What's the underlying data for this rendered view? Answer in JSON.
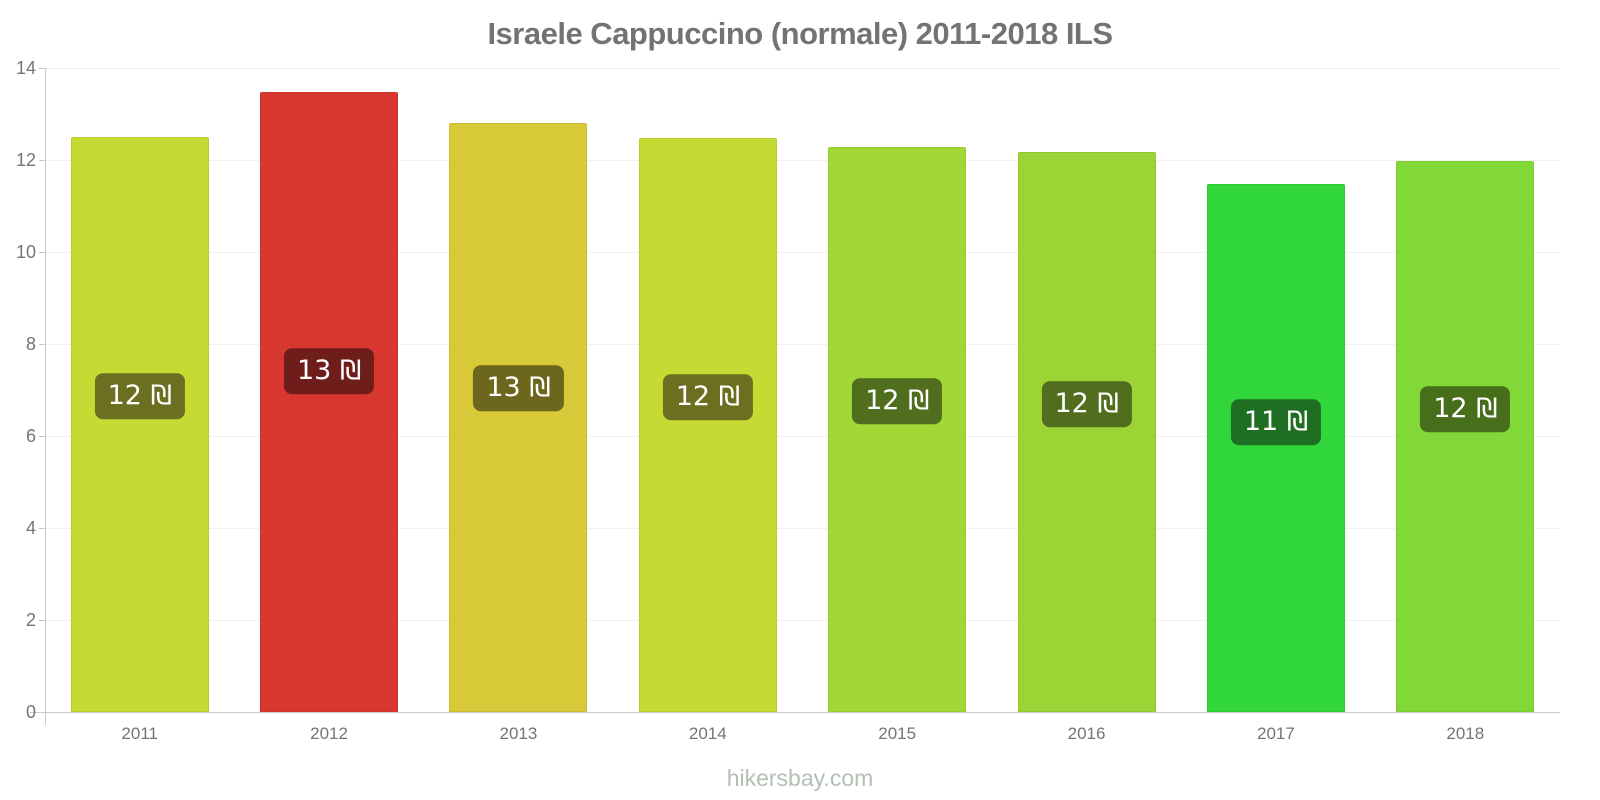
{
  "title": "Israele Cappuccino (normale) 2011-2018 ILS",
  "watermark": "hikersbay.com",
  "chart_data": {
    "type": "bar",
    "title": "Israele Cappuccino (normale) 2011-2018 ILS",
    "currency": "ILS",
    "categories": [
      "2011",
      "2012",
      "2013",
      "2014",
      "2015",
      "2016",
      "2017",
      "2018"
    ],
    "values": [
      12.5,
      13.47,
      12.8,
      12.47,
      12.28,
      12.17,
      11.47,
      11.97
    ],
    "bar_labels": [
      "12 ₪",
      "13 ₪",
      "13 ₪",
      "12 ₪",
      "12 ₪",
      "12 ₪",
      "11 ₪",
      "12 ₪"
    ],
    "bar_colors": [
      "#c6da34",
      "#d83730",
      "#d7c937",
      "#c6da34",
      "#a1d838",
      "#9dd435",
      "#31d73a",
      "#82d838"
    ],
    "badge_colors": [
      "#6c6e20",
      "#6e1d1b",
      "#6d661d",
      "#6c6e20",
      "#506e1d",
      "#506e1d",
      "#1e6e23",
      "#466e1b"
    ],
    "xlabel": "",
    "ylabel": "",
    "ylim": [
      0,
      14
    ],
    "yticks": [
      0,
      2,
      4,
      6,
      8,
      10,
      12,
      14
    ],
    "grid": true,
    "legend_position": "none",
    "badge_text_color": "#ffffff"
  },
  "style": {
    "title_color": "#737373",
    "axis_label_color": "#757575",
    "axis_line_color": "#c9c9c9",
    "gridline_color": "#f2f2f2",
    "watermark_color": "#b4bfb4"
  }
}
